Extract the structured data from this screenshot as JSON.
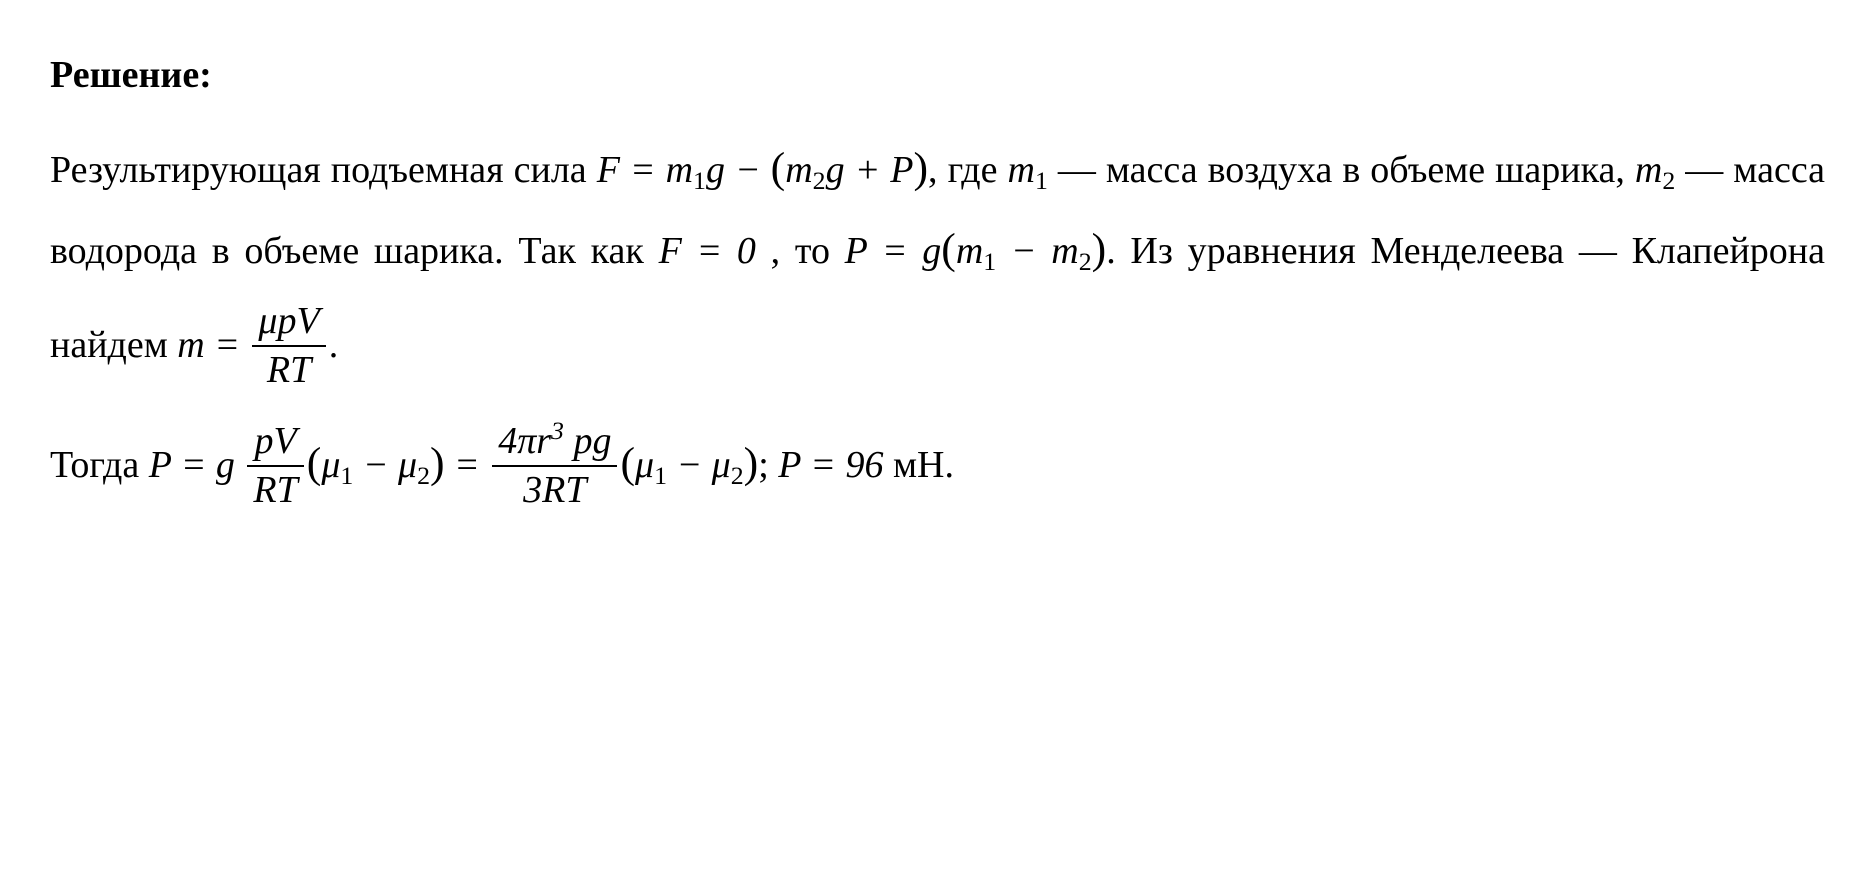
{
  "heading": "Решение:",
  "p1_a": "Результирующая подъемная сила ",
  "eq1": "F = m",
  "eq1_s1": "1",
  "eq1_b": "g − ",
  "eq1_lp": "(",
  "eq1_c": "m",
  "eq1_s2": "2",
  "eq1_d": "g + P",
  "eq1_rp": ")",
  "p1_b": ", где ",
  "m1": "m",
  "m1s": "1",
  "p1_c": " — масса воздуха в объеме шарика, ",
  "m2": "m",
  "m2s": "2",
  "p1_d": " — масса водо­рода в объеме шарика. Так как ",
  "eq2": "F = 0",
  "p1_e": " , то ",
  "eq3a": "P = g",
  "eq3lp": "(",
  "eq3b": "m",
  "eq3s1": "1",
  "eq3c": " − m",
  "eq3s2": "2",
  "eq3rp": ")",
  "p1_f": ". Из уравнения  Менделеева — Клапейрона  найдем   ",
  "eq4l": "m = ",
  "frac1_num": "μpV",
  "frac1_den": "RT",
  "p1_g": ".",
  "p2_a": "Тогда ",
  "eq5a": "P = g ",
  "frac2_num": "pV",
  "frac2_den": "RT",
  "eq5lp": "(",
  "eq5b": "μ",
  "eq5s1": "1",
  "eq5c": " − μ",
  "eq5s2": "2",
  "eq5rp": ")",
  "eq5eq": " = ",
  "frac3_num_a": "4πr",
  "frac3_num_sup": "3",
  "frac3_num_b": " pg",
  "frac3_den": "3RT",
  "eq6lp": "(",
  "eq6a": "μ",
  "eq6s1": "1",
  "eq6b": " − μ",
  "eq6s2": "2",
  "eq6rp": ")",
  "p2_b": ";  ",
  "eq7": "P = 96 ",
  "unit": "мН",
  "p2_c": "."
}
